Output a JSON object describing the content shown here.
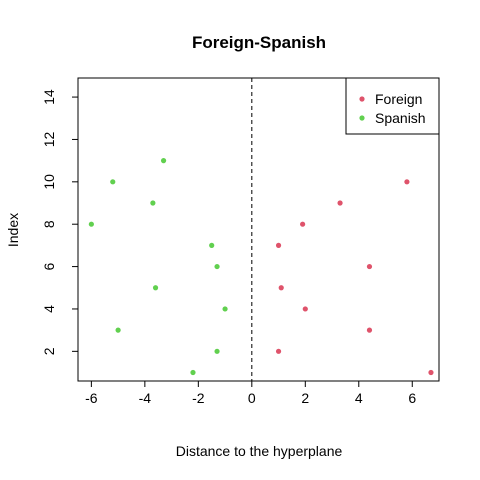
{
  "chart_data": {
    "type": "scatter",
    "title": "Foreign-Spanish",
    "xlabel": "Distance to the hyperplane",
    "ylabel": "Index",
    "xlim": [
      -6.5,
      7.0
    ],
    "ylim": [
      0.6,
      14.9
    ],
    "x_ticks": [
      -6,
      -4,
      -2,
      0,
      2,
      4,
      6
    ],
    "y_ticks": [
      2,
      4,
      6,
      8,
      10,
      12,
      14
    ],
    "x_tick_labels": [
      "-6",
      "-4",
      "-2",
      "0",
      "2",
      "4",
      "6"
    ],
    "y_tick_labels": [
      "2",
      "4",
      "6",
      "8",
      "10",
      "12",
      "14"
    ],
    "reference_line": {
      "x": 0,
      "style": "dashed"
    },
    "grid": false,
    "legend_position": "top-right",
    "series": [
      {
        "name": "Foreign",
        "color": "#DF536B",
        "x": [
          6.7,
          1.0,
          4.4,
          2.0,
          1.1,
          4.4,
          1.0,
          1.9,
          3.3,
          5.8
        ],
        "y": [
          1,
          2,
          3,
          4,
          5,
          6,
          7,
          8,
          9,
          10
        ]
      },
      {
        "name": "Spanish",
        "color": "#61D04F",
        "x": [
          -2.2,
          -1.3,
          -5.0,
          -1.0,
          -3.6,
          -1.3,
          -1.5,
          -6.0,
          -3.7,
          -5.2,
          -3.3
        ],
        "y": [
          1,
          2,
          3,
          4,
          5,
          6,
          7,
          8,
          9,
          10,
          11
        ]
      }
    ]
  }
}
